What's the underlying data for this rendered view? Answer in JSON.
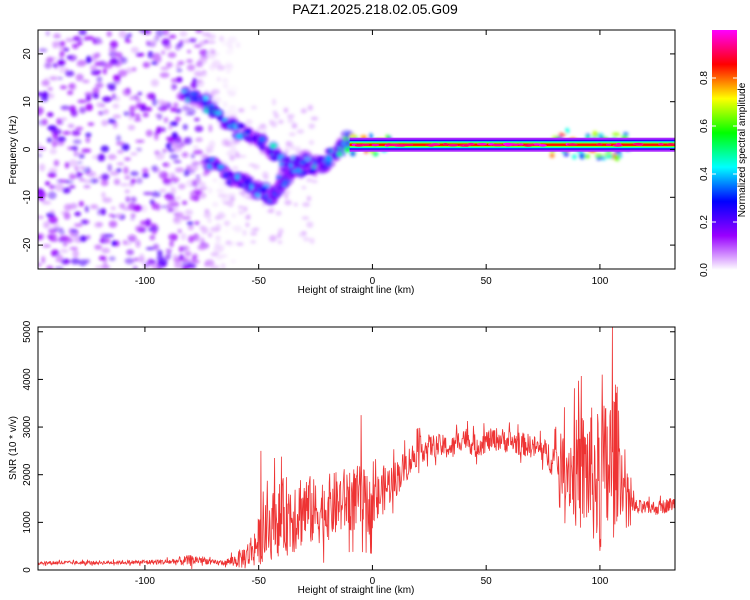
{
  "figure": {
    "title": "PAZ1.2025.218.02.05.G09"
  },
  "chart_data": [
    {
      "type": "heatmap",
      "xlabel": "Height of straight line (km)",
      "ylabel": "Frequency (Hz)",
      "xlim": [
        -147,
        133
      ],
      "ylim": [
        -25,
        25
      ],
      "xticks": [
        -100,
        -50,
        0,
        50,
        100
      ],
      "yticks": [
        -20,
        -10,
        0,
        10,
        20
      ],
      "colorbar": {
        "label": "Normalized spectral amplitude",
        "range": [
          0,
          1
        ],
        "ticks": [
          0.0,
          0.2,
          0.4,
          0.6,
          0.8
        ],
        "tick_labels": [
          "0.0",
          "0.2",
          "0.4",
          "0.6",
          "0.8"
        ],
        "colors": [
          "#ffffff",
          "#9900ff",
          "#0000ff",
          "#00ffff",
          "#00ff00",
          "#ffff00",
          "#ff0000",
          "#ff00ff"
        ]
      },
      "features": [
        {
          "name": "noise region",
          "x_range": [
            -147,
            -65
          ],
          "y_range": [
            -25,
            25
          ],
          "amplitude": 0.1
        },
        {
          "name": "upper branch",
          "points": [
            [
              -82,
              12
            ],
            [
              -72,
              9
            ],
            [
              -62,
              5
            ],
            [
              -50,
              2
            ],
            [
              -40,
              -2
            ],
            [
              -30,
              -4
            ],
            [
              -22,
              -3
            ],
            [
              -15,
              0
            ],
            [
              -8,
              3
            ]
          ],
          "amplitude": 0.35
        },
        {
          "name": "lower branch",
          "points": [
            [
              -72,
              -2
            ],
            [
              -62,
              -6
            ],
            [
              -52,
              -8
            ],
            [
              -45,
              -10
            ],
            [
              -40,
              -7
            ],
            [
              -35,
              -4
            ],
            [
              -28,
              -2
            ]
          ],
          "amplitude": 0.3
        },
        {
          "name": "main carrier",
          "x_range": [
            -10,
            133
          ],
          "frequency": 1,
          "amplitude": 0.85
        }
      ]
    },
    {
      "type": "line",
      "xlabel": "Height of straight line (km)",
      "ylabel": "SNR (10 * v/v)",
      "xlim": [
        -147,
        133
      ],
      "ylim": [
        0,
        5100
      ],
      "xticks": [
        -100,
        -50,
        0,
        50,
        100
      ],
      "yticks": [
        0,
        1000,
        2000,
        3000,
        4000,
        5000
      ],
      "color": "#ee3333",
      "series": [
        {
          "x": [
            -147,
            -130,
            -110,
            -90,
            -80,
            -75,
            -70,
            -65,
            -60,
            -55,
            -50,
            -45,
            -40,
            -35,
            -30,
            -25,
            -20,
            -15,
            -10,
            -5,
            0,
            5,
            10,
            15,
            20,
            25,
            30,
            35,
            40,
            45,
            50,
            55,
            60,
            65,
            70,
            75,
            80,
            85,
            90,
            95,
            100,
            105,
            108,
            110,
            115,
            120,
            125,
            133
          ],
          "y": [
            150,
            150,
            160,
            170,
            200,
            220,
            150,
            160,
            200,
            300,
            600,
            900,
            1100,
            1200,
            1300,
            1200,
            1300,
            1400,
            1500,
            1500,
            1300,
            1700,
            1900,
            2200,
            2500,
            2600,
            2600,
            2550,
            2800,
            2600,
            2700,
            2750,
            2700,
            2650,
            2600,
            2500,
            2300,
            2200,
            2000,
            2100,
            1800,
            2200,
            2500,
            1800,
            1300,
            1300,
            1300,
            1400
          ],
          "amp": [
            40,
            40,
            40,
            60,
            120,
            80,
            60,
            60,
            150,
            300,
            500,
            700,
            800,
            900,
            800,
            700,
            700,
            700,
            700,
            700,
            600,
            500,
            400,
            350,
            300,
            250,
            250,
            250,
            250,
            250,
            250,
            250,
            250,
            250,
            250,
            250,
            400,
            800,
            1200,
            1400,
            1500,
            1800,
            1400,
            600,
            200,
            150,
            150,
            150
          ]
        }
      ],
      "peaks": [
        {
          "x": 105.5,
          "y": 5100
        },
        {
          "x": 101,
          "y": 4100
        },
        {
          "x": 100,
          "y": 400
        },
        {
          "x": -5,
          "y": 3250
        },
        {
          "x": -49,
          "y": 2500
        },
        {
          "x": -43,
          "y": 2350
        }
      ]
    }
  ]
}
